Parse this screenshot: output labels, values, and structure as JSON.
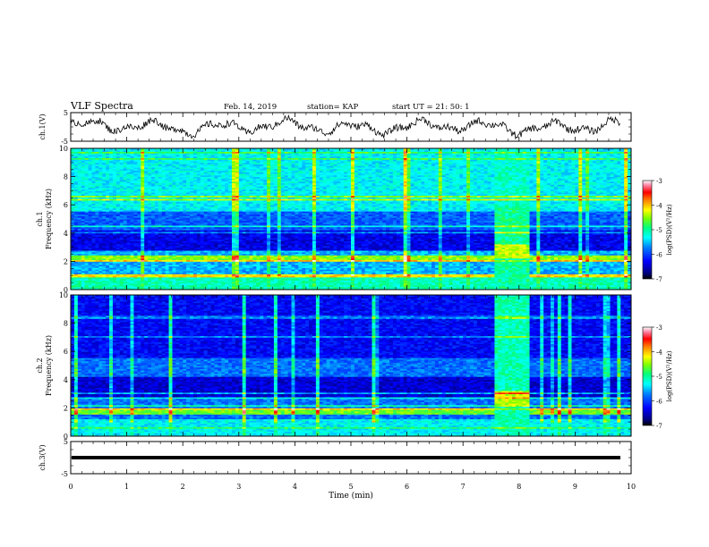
{
  "header": {
    "title": "VLF Spectra",
    "date": "Feb. 14, 2019",
    "station": "station= KAP",
    "start": "start  UT  =   21: 50: 1"
  },
  "chart_data": [
    {
      "type": "line",
      "panel": "ch1-waveform",
      "ylabel": "ch.1(V)",
      "ylim": [
        -5,
        5
      ],
      "yticks": [
        "5",
        "-5"
      ],
      "xlim": [
        0,
        10
      ],
      "color": "#000000"
    },
    {
      "type": "heatmap",
      "panel": "ch1-spectrogram",
      "ylabel": "ch.1",
      "ylabel2": "Frequency  (kHz)",
      "ylim": [
        0,
        10
      ],
      "yticks": [
        "0",
        "2",
        "4",
        "6",
        "8",
        "10"
      ],
      "xlim": [
        0,
        10
      ],
      "colorbar": {
        "label": "log(PSD)(V²/Hz)",
        "range": [
          -7,
          -3
        ],
        "ticks": [
          "-3",
          "-4",
          "-5",
          "-6",
          "-7"
        ]
      }
    },
    {
      "type": "heatmap",
      "panel": "ch2-spectrogram",
      "ylabel": "ch.2",
      "ylabel2": "Frequency  (kHz)",
      "ylim": [
        0,
        10
      ],
      "yticks": [
        "0",
        "2",
        "4",
        "6",
        "8",
        "10"
      ],
      "xlim": [
        0,
        10
      ],
      "colorbar": {
        "label": "log(PSD)(V²/Hz)",
        "range": [
          -7,
          -3
        ],
        "ticks": [
          "-3",
          "-4",
          "-5",
          "-6",
          "-7"
        ]
      }
    },
    {
      "type": "line",
      "panel": "ch3-waveform",
      "ylabel": "ch.3(V)",
      "ylim": [
        -5,
        5
      ],
      "yticks": [
        "5",
        "-5"
      ],
      "xlim": [
        0,
        10
      ],
      "color": "#000000"
    }
  ],
  "xaxis": {
    "label": "Time  (min)",
    "ticks": [
      "0",
      "1",
      "2",
      "3",
      "4",
      "5",
      "6",
      "7",
      "8",
      "9",
      "10"
    ]
  }
}
